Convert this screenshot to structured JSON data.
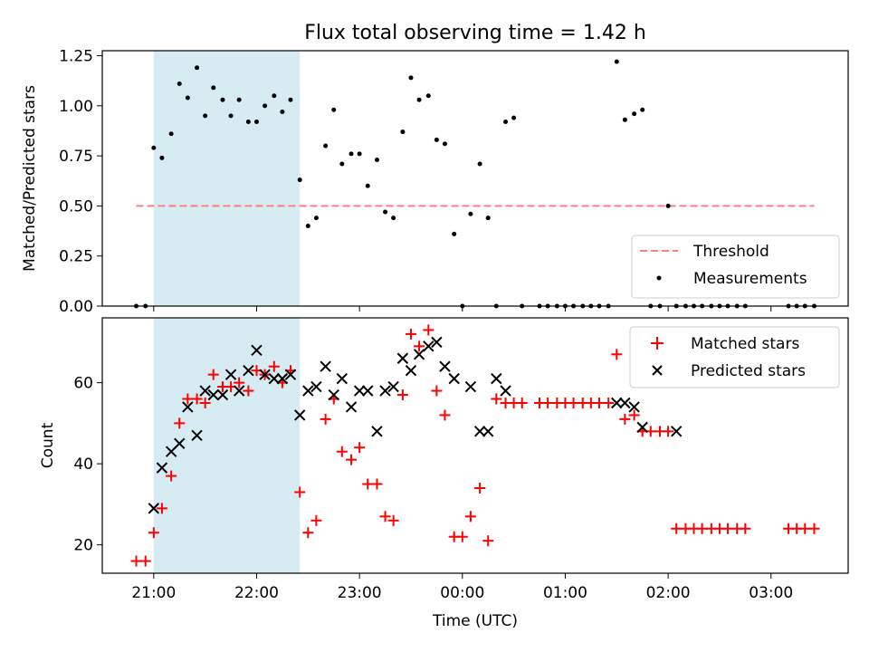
{
  "title": "Flux total observing time = 1.42 h",
  "colors": {
    "shade": "#add8e6",
    "threshold": "#ff7f7f",
    "matched": "#ff0000",
    "predicted": "#000000",
    "measure": "#000000"
  },
  "chart_data": [
    {
      "type": "scatter",
      "ylabel": "Matched/Predicted stars",
      "ylim": [
        0,
        1.275
      ],
      "yticks": [
        0,
        0.25,
        0.5,
        0.75,
        1.0,
        1.25
      ],
      "yticklabels": [
        "0.00",
        "0.25",
        "0.50",
        "0.75",
        "1.00",
        "1.25"
      ],
      "xlim": [
        20.5,
        3.75
      ],
      "shaded_span": [
        21.0,
        22.42
      ],
      "legend": {
        "placement": "lower-right",
        "entries": [
          "Threshold",
          "Measurements"
        ]
      },
      "threshold": {
        "name": "Threshold",
        "value": 0.5,
        "x": [
          20.83,
          3.42
        ]
      },
      "series": [
        {
          "name": "Measurements",
          "x": [
            20.83,
            20.92,
            21.0,
            21.08,
            21.17,
            21.25,
            21.33,
            21.42,
            21.5,
            21.58,
            21.67,
            21.75,
            21.83,
            21.92,
            22.0,
            22.08,
            22.17,
            22.25,
            22.33,
            22.42,
            22.5,
            22.58,
            22.67,
            22.75,
            22.83,
            22.92,
            23.0,
            23.08,
            23.17,
            23.25,
            23.33,
            23.42,
            23.5,
            23.58,
            23.67,
            23.75,
            23.83,
            23.92,
            24.0,
            24.08,
            24.17,
            24.25,
            24.33,
            24.42,
            24.5,
            24.58,
            24.75,
            24.83,
            24.92,
            25.0,
            25.08,
            25.17,
            25.25,
            25.33,
            25.42,
            25.5,
            25.58,
            25.67,
            25.75,
            25.83,
            25.92,
            26.0,
            26.08,
            26.17,
            26.25,
            26.33,
            26.42,
            26.5,
            26.58,
            26.67,
            26.75,
            27.17,
            27.25,
            27.33,
            27.42
          ],
          "y": [
            0,
            0,
            0.79,
            0.74,
            0.86,
            1.11,
            1.04,
            1.19,
            0.95,
            1.09,
            1.03,
            0.95,
            1.03,
            0.92,
            0.92,
            1.0,
            1.05,
            0.97,
            1.03,
            0.63,
            0.4,
            0.44,
            0.8,
            0.98,
            0.71,
            0.76,
            0.76,
            0.6,
            0.73,
            0.47,
            0.44,
            0.87,
            1.14,
            1.03,
            1.05,
            0.83,
            0.81,
            0.36,
            0,
            0.46,
            0.71,
            0.44,
            0,
            0.92,
            0.94,
            0,
            0,
            0,
            0,
            0,
            0,
            0,
            0,
            0,
            0,
            1.22,
            0.93,
            0.96,
            0.98,
            0,
            0,
            0.5,
            0,
            0,
            0,
            0,
            0,
            0,
            0,
            0,
            0,
            0,
            0,
            0,
            0
          ]
        }
      ]
    },
    {
      "type": "scatter",
      "ylabel": "Count",
      "xlabel": "Time (UTC)",
      "ylim": [
        13,
        76
      ],
      "yticks": [
        20,
        40,
        60
      ],
      "yticklabels": [
        "20",
        "40",
        "60"
      ],
      "xlim": [
        20.5,
        3.75
      ],
      "xticks": [
        21,
        22,
        23,
        0,
        1,
        2,
        3
      ],
      "xticklabels": [
        "21:00",
        "22:00",
        "23:00",
        "00:00",
        "01:00",
        "02:00",
        "03:00"
      ],
      "shaded_span": [
        21.0,
        22.42
      ],
      "legend": {
        "placement": "top-right",
        "entries": [
          "Matched stars",
          "Predicted stars"
        ]
      },
      "series": [
        {
          "name": "Matched stars",
          "marker": "plus",
          "x": [
            20.83,
            20.92,
            21.0,
            21.08,
            21.17,
            21.25,
            21.33,
            21.42,
            21.5,
            21.58,
            21.67,
            21.75,
            21.83,
            21.92,
            22.0,
            22.08,
            22.17,
            22.25,
            22.33,
            22.42,
            22.5,
            22.58,
            22.67,
            22.75,
            22.83,
            22.92,
            23.0,
            23.08,
            23.17,
            23.25,
            23.33,
            23.42,
            23.5,
            23.58,
            23.67,
            23.75,
            23.83,
            23.92,
            24.0,
            24.08,
            24.17,
            24.25,
            24.33,
            24.42,
            24.5,
            24.58,
            24.75,
            24.83,
            24.92,
            25.0,
            25.08,
            25.17,
            25.25,
            25.33,
            25.42,
            25.5,
            25.58,
            25.67,
            25.75,
            25.83,
            25.92,
            26.0,
            26.08,
            26.17,
            26.25,
            26.33,
            26.42,
            26.5,
            26.58,
            26.67,
            26.75,
            27.17,
            27.25,
            27.33,
            27.42
          ],
          "y": [
            16,
            16,
            23,
            29,
            37,
            50,
            56,
            56,
            55,
            62,
            59,
            59,
            60,
            58,
            63,
            62,
            64,
            60,
            63,
            33,
            23,
            26,
            51,
            56,
            43,
            41,
            44,
            35,
            35,
            27,
            26,
            57,
            72,
            69,
            73,
            58,
            52,
            22,
            22,
            27,
            34,
            21,
            56,
            55,
            55,
            55,
            55,
            55,
            55,
            55,
            55,
            55,
            55,
            55,
            55,
            67,
            51,
            52,
            48,
            48,
            48,
            48,
            24,
            24,
            24,
            24,
            24,
            24,
            24,
            24,
            24,
            24,
            24,
            24,
            24
          ]
        },
        {
          "name": "Predicted stars",
          "marker": "x",
          "x": [
            21.0,
            21.08,
            21.17,
            21.25,
            21.33,
            21.42,
            21.5,
            21.58,
            21.67,
            21.75,
            21.83,
            21.92,
            22.0,
            22.08,
            22.17,
            22.25,
            22.33,
            22.42,
            22.5,
            22.58,
            22.67,
            22.75,
            22.83,
            22.92,
            23.0,
            23.08,
            23.17,
            23.25,
            23.33,
            23.42,
            23.5,
            23.58,
            23.67,
            23.75,
            23.83,
            23.92,
            24.0,
            24.08,
            24.17,
            24.25,
            24.33,
            24.42,
            25.5,
            25.58,
            25.67,
            25.75,
            26.08
          ],
          "y": [
            29,
            39,
            43,
            45,
            54,
            47,
            58,
            57,
            57,
            62,
            58,
            63,
            68,
            62,
            61,
            61,
            62,
            52,
            58,
            59,
            64,
            57,
            61,
            54,
            58,
            58,
            48,
            58,
            59,
            66,
            63,
            67,
            69,
            70,
            64,
            61,
            null,
            59,
            48,
            48,
            61,
            58,
            55,
            55,
            54,
            49,
            48
          ]
        }
      ]
    }
  ]
}
